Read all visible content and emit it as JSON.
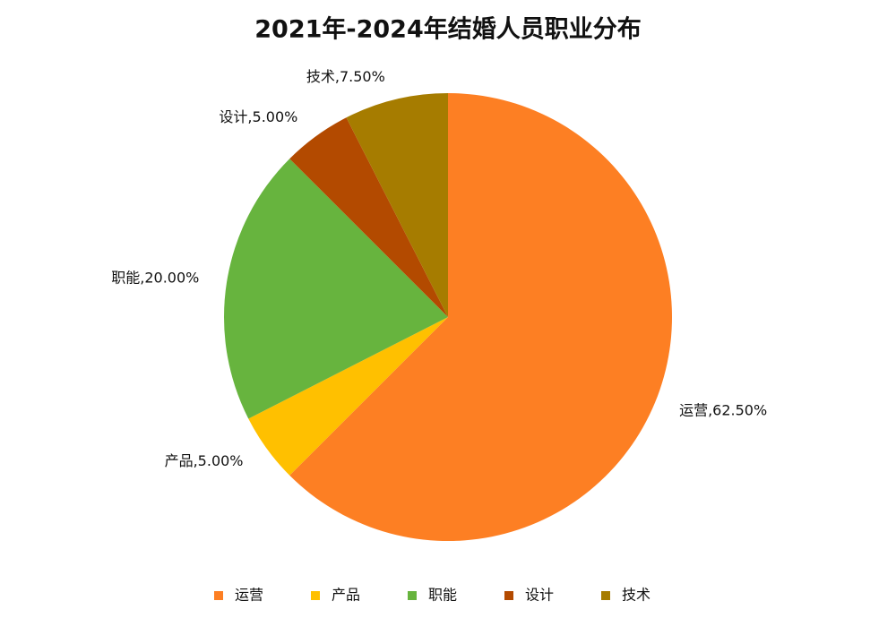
{
  "chart_data": {
    "type": "pie",
    "title": "2021年-2024年结婚人员职业分布",
    "categories": [
      "运营",
      "产品",
      "职能",
      "设计",
      "技术"
    ],
    "values": [
      62.5,
      5,
      20,
      5,
      7.5
    ],
    "value_labels": [
      "运营,62.50%",
      "产品,5.00%",
      "职能,20.00%",
      "设计,5.00%",
      "技术,7.50%"
    ],
    "colors": [
      "#fd7f23",
      "#ffc000",
      "#67b43e",
      "#b34a00",
      "#a67c00"
    ],
    "legend": "bottom"
  }
}
